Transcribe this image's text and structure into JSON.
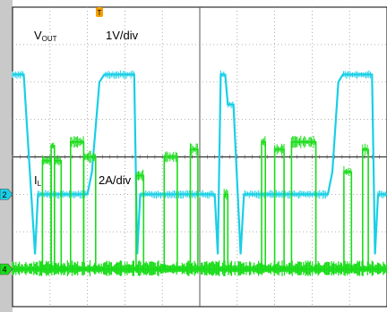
{
  "chart_data": {
    "type": "line",
    "title": "",
    "grid": true,
    "divisions": {
      "horizontal": 10,
      "vertical": 8
    },
    "trigger_marker": "T",
    "channels": [
      {
        "name": "VOUT",
        "label_main": "V",
        "label_sub": "OUT",
        "scale": "1V/div",
        "color": "#19cfe6",
        "marker": "2",
        "ground_div": -1,
        "edges_div": [
          [
            0.0,
            3.2
          ],
          [
            0.03,
            3.2
          ],
          [
            0.06,
            -1.6
          ],
          [
            0.068,
            0.0
          ],
          [
            0.074,
            0.0
          ],
          [
            0.2,
            0.0
          ],
          [
            0.212,
            0.6
          ],
          [
            0.232,
            3.0
          ],
          [
            0.245,
            3.2
          ],
          [
            0.325,
            3.2
          ],
          [
            0.333,
            -1.6
          ],
          [
            0.341,
            0.0
          ],
          [
            0.348,
            0.0
          ],
          [
            0.54,
            0.0
          ],
          [
            0.548,
            -1.6
          ],
          [
            0.556,
            3.2
          ],
          [
            0.56,
            3.2
          ],
          [
            0.568,
            3.2
          ],
          [
            0.575,
            2.4
          ],
          [
            0.59,
            2.4
          ],
          [
            0.609,
            -1.6
          ],
          [
            0.618,
            0.0
          ],
          [
            0.624,
            0.0
          ],
          [
            0.842,
            0.0
          ],
          [
            0.854,
            0.6
          ],
          [
            0.87,
            3.0
          ],
          [
            0.882,
            3.2
          ],
          [
            0.96,
            3.2
          ],
          [
            0.968,
            -1.6
          ],
          [
            0.976,
            0.0
          ],
          [
            1.0,
            0.0
          ]
        ]
      },
      {
        "name": "IL",
        "label_main": "I",
        "label_sub": "L",
        "scale": "2A/div",
        "color": "#1adc1a",
        "marker": "4",
        "ground_div": -3,
        "pulses_div": [
          [
            0.08,
            0.103,
            2.9
          ],
          [
            0.103,
            0.112,
            3.3
          ],
          [
            0.112,
            0.13,
            2.9
          ],
          [
            0.13,
            0.145,
            0.0
          ],
          [
            0.155,
            0.19,
            3.4
          ],
          [
            0.19,
            0.222,
            3.0
          ],
          [
            0.33,
            0.35,
            2.5
          ],
          [
            0.405,
            0.44,
            3.0
          ],
          [
            0.475,
            0.495,
            3.2
          ],
          [
            0.565,
            0.575,
            2.0
          ],
          [
            0.665,
            0.675,
            3.4
          ],
          [
            0.7,
            0.725,
            3.2
          ],
          [
            0.745,
            0.81,
            3.4
          ],
          [
            0.885,
            0.905,
            2.6
          ],
          [
            0.935,
            0.95,
            3.2
          ]
        ]
      }
    ]
  }
}
